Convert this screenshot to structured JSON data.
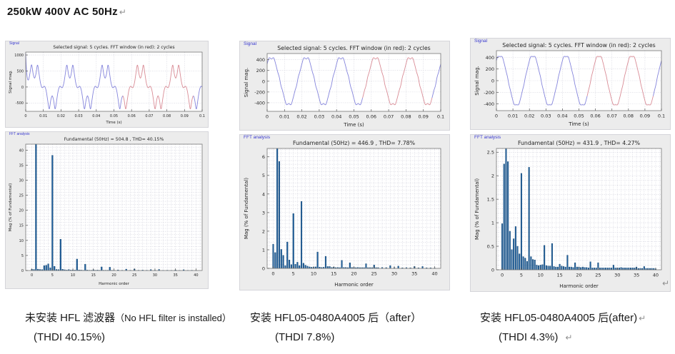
{
  "page": {
    "heading": "250kW 400V AC 50Hz",
    "pilcrow": "↵"
  },
  "figures": [
    {
      "signal_label": "Signal",
      "fft_label": "FFT analysis"
    },
    {
      "signal_label": "Signal",
      "fft_label": "FFT analysis"
    },
    {
      "signal_label": "Signal",
      "fft_label": "FFT analysis"
    }
  ],
  "captions": [
    {
      "line1_zh": "未安装 HFL 滤波器",
      "line1_en": "（No HFL filter is installed）",
      "line2": "(THDI 40.15%)"
    },
    {
      "line1_zh": "安装 HFL05-0480A4005 后",
      "line1_en": "（after）",
      "line2": "(THDI 7.8%)"
    },
    {
      "line1_zh": "安装 HFL05-0480A4005 后",
      "line1_en": "(after)",
      "line2": "(THDI 4.3%)"
    }
  ],
  "chart_data": [
    {
      "type": "line",
      "figure": 1,
      "panel": "Signal",
      "title": "Selected signal: 5 cycles. FFT window (in red): 2 cycles",
      "xlabel": "Time (s)",
      "ylabel": "Signal mag.",
      "xlim": [
        0,
        0.1
      ],
      "ylim": [
        -760,
        1090
      ],
      "xticks": [
        0,
        0.01,
        0.02,
        0.03,
        0.04,
        0.05,
        0.06,
        0.07,
        0.08,
        0.09,
        0.1
      ],
      "yticks": [
        -500,
        0,
        500,
        1000
      ],
      "frequency_hz": 50,
      "cycles": 5,
      "fundamental_peak": 504.8,
      "harmonics_pct": [
        [
          1,
          100
        ],
        [
          5,
          38.3
        ],
        [
          7,
          10.4
        ],
        [
          11,
          3.8
        ],
        [
          13,
          2.1
        ],
        [
          17,
          1.2
        ],
        [
          19,
          1.1
        ]
      ],
      "fft_window_s": [
        0.055,
        0.095
      ],
      "transient_peak": 1050,
      "line_color": "#8585dc",
      "window_color": "#d98c96"
    },
    {
      "type": "bar",
      "figure": 1,
      "panel": "FFT analysis",
      "title": "Fundamental (50Hz) = 504.8 , THD= 40.15%",
      "xlabel": "Harmonic order",
      "ylabel": "Mag (% of Fundamental)",
      "xlim": [
        -1.5,
        41.5
      ],
      "ylim": [
        0,
        42
      ],
      "xticks": [
        0,
        5,
        10,
        15,
        20,
        25,
        30,
        35,
        40
      ],
      "yticks": [
        0,
        5,
        10,
        15,
        20,
        25,
        30,
        35,
        40
      ],
      "bar_color": "#1f5f9e",
      "bar_edge": "#14456e",
      "bars": [
        [
          0,
          0.4
        ],
        [
          0.5,
          0.35
        ],
        [
          1,
          100
        ],
        [
          1.5,
          0.45
        ],
        [
          2,
          0.35
        ],
        [
          2.5,
          0.3
        ],
        [
          3,
          1.6
        ],
        [
          3.5,
          1.75
        ],
        [
          4,
          2.2
        ],
        [
          4.5,
          0.9
        ],
        [
          5,
          38.3
        ],
        [
          5.5,
          1.4
        ],
        [
          6,
          0.35
        ],
        [
          6.5,
          0.3
        ],
        [
          7,
          10.4
        ],
        [
          7.5,
          0.4
        ],
        [
          8,
          0.25
        ],
        [
          8.5,
          0.15
        ],
        [
          9,
          0.3
        ],
        [
          9.5,
          0.15
        ],
        [
          10,
          0.2
        ],
        [
          10.5,
          0.15
        ],
        [
          11,
          3.8
        ],
        [
          11.5,
          0.2
        ],
        [
          12,
          0.15
        ],
        [
          12.5,
          0.1
        ],
        [
          13,
          2.1
        ],
        [
          13.5,
          0.15
        ],
        [
          14,
          0.1
        ],
        [
          14.5,
          0.1
        ],
        [
          15,
          0.25
        ],
        [
          15.5,
          0.1
        ],
        [
          16,
          0.15
        ],
        [
          16.5,
          0.1
        ],
        [
          17,
          1.2
        ],
        [
          17.5,
          0.1
        ],
        [
          18,
          0.1
        ],
        [
          18.5,
          0.1
        ],
        [
          19,
          1.1
        ],
        [
          19.5,
          0.1
        ],
        [
          20,
          0.1
        ],
        [
          21,
          0.2
        ],
        [
          22,
          0.1
        ],
        [
          23,
          0.45
        ],
        [
          24,
          0.1
        ],
        [
          25,
          0.5
        ],
        [
          26,
          0.1
        ],
        [
          27,
          0.15
        ],
        [
          28,
          0.1
        ],
        [
          29,
          0.3
        ],
        [
          30,
          0.1
        ],
        [
          31,
          0.35
        ],
        [
          32,
          0.08
        ],
        [
          33,
          0.1
        ],
        [
          34,
          0.08
        ],
        [
          35,
          0.2
        ],
        [
          36,
          0.08
        ],
        [
          37,
          0.25
        ],
        [
          38,
          0.08
        ],
        [
          39,
          0.1
        ],
        [
          40,
          0.05
        ]
      ]
    },
    {
      "type": "line",
      "figure": 2,
      "panel": "Signal",
      "title": "Selected signal: 5 cycles. FFT window (in red): 2 cycles",
      "xlabel": "Time (s)",
      "ylabel": "Signal mag.",
      "xlim": [
        0,
        0.1
      ],
      "ylim": [
        -560,
        515
      ],
      "xticks": [
        0,
        0.01,
        0.02,
        0.03,
        0.04,
        0.05,
        0.06,
        0.07,
        0.08,
        0.09,
        0.1
      ],
      "yticks": [
        -400,
        -200,
        0,
        200,
        400
      ],
      "frequency_hz": 50,
      "cycles": 5,
      "fundamental_peak": 446.9,
      "harmonics_pct": [
        [
          1,
          100
        ],
        [
          5,
          2.95
        ],
        [
          7,
          3.6
        ],
        [
          11,
          0.88
        ],
        [
          13,
          0.65
        ]
      ],
      "fft_window_s": [
        0.055,
        0.095
      ],
      "line_color": "#8585dc",
      "window_color": "#d98c96"
    },
    {
      "type": "bar",
      "figure": 2,
      "panel": "FFT analysis",
      "title": "Fundamental (50Hz) = 446.9 , THD= 7.78%",
      "xlabel": "Harmonic order",
      "ylabel": "Mag (% of Fundamental)",
      "xlim": [
        -1.5,
        41.5
      ],
      "ylim": [
        0,
        6.45
      ],
      "xticks": [
        0,
        5,
        10,
        15,
        20,
        25,
        30,
        35,
        40
      ],
      "yticks": [
        0,
        1,
        2,
        3,
        4,
        5,
        6
      ],
      "bar_color": "#1f5f9e",
      "bar_edge": "#14456e",
      "bars": [
        [
          0,
          1.3
        ],
        [
          0.5,
          0.85
        ],
        [
          1,
          100
        ],
        [
          1.5,
          5.75
        ],
        [
          2,
          1.02
        ],
        [
          2.5,
          0.7
        ],
        [
          3,
          0.15
        ],
        [
          3.5,
          1.42
        ],
        [
          4,
          0.45
        ],
        [
          4.5,
          0.2
        ],
        [
          5,
          2.95
        ],
        [
          5.5,
          0.22
        ],
        [
          6,
          0.33
        ],
        [
          6.5,
          0.15
        ],
        [
          7,
          3.6
        ],
        [
          7.5,
          0.28
        ],
        [
          8,
          0.17
        ],
        [
          8.5,
          0.12
        ],
        [
          9,
          0.08
        ],
        [
          9.5,
          0.06
        ],
        [
          10,
          0.06
        ],
        [
          10.5,
          0.08
        ],
        [
          11,
          0.88
        ],
        [
          11.5,
          0.07
        ],
        [
          12,
          0.05
        ],
        [
          12.5,
          0.06
        ],
        [
          13,
          0.65
        ],
        [
          13.5,
          0.1
        ],
        [
          14,
          0.1
        ],
        [
          14.5,
          0.05
        ],
        [
          15,
          0.07
        ],
        [
          15.5,
          0.04
        ],
        [
          16,
          0.05
        ],
        [
          16.5,
          0.04
        ],
        [
          17,
          0.43
        ],
        [
          17.5,
          0.05
        ],
        [
          18,
          0.05
        ],
        [
          18.5,
          0.04
        ],
        [
          19,
          0.3
        ],
        [
          19.5,
          0.05
        ],
        [
          20,
          0.05
        ],
        [
          20.5,
          0.04
        ],
        [
          21,
          0.05
        ],
        [
          21.5,
          0.04
        ],
        [
          22,
          0.04
        ],
        [
          22.5,
          0.04
        ],
        [
          23,
          0.25
        ],
        [
          23.5,
          0.04
        ],
        [
          24,
          0.04
        ],
        [
          24.5,
          0.04
        ],
        [
          25,
          0.18
        ],
        [
          25.5,
          0.04
        ],
        [
          26,
          0.04
        ],
        [
          27,
          0.05
        ],
        [
          28,
          0.04
        ],
        [
          29,
          0.15
        ],
        [
          30,
          0.04
        ],
        [
          31,
          0.12
        ],
        [
          32,
          0.03
        ],
        [
          33,
          0.04
        ],
        [
          34,
          0.03
        ],
        [
          35,
          0.1
        ],
        [
          36,
          0.03
        ],
        [
          37,
          0.1
        ],
        [
          38,
          0.03
        ],
        [
          39,
          0.03
        ],
        [
          40,
          0.02
        ]
      ]
    },
    {
      "type": "line",
      "figure": 3,
      "panel": "Signal",
      "title": "Selected signal: 5 cycles. FFT window (in red): 2 cycles",
      "xlabel": "Time (s)",
      "ylabel": "Signal mag.",
      "xlim": [
        0,
        0.1
      ],
      "ylim": [
        -515,
        515
      ],
      "xticks": [
        0,
        0.01,
        0.02,
        0.03,
        0.04,
        0.05,
        0.06,
        0.07,
        0.08,
        0.09,
        0.1
      ],
      "yticks": [
        -400,
        -200,
        0,
        200,
        400
      ],
      "frequency_hz": 50,
      "cycles": 5,
      "fundamental_peak": 431.9,
      "harmonics_pct": [
        [
          1,
          100
        ],
        [
          5,
          2.05
        ],
        [
          7,
          2.18
        ],
        [
          11,
          0.52
        ],
        [
          13,
          0.56
        ]
      ],
      "fft_window_s": [
        0.055,
        0.095
      ],
      "line_color": "#8585dc",
      "window_color": "#d98c96"
    },
    {
      "type": "bar",
      "figure": 3,
      "panel": "FFT analysis",
      "title": "Fundamental (50Hz) = 431.9 , THD= 4.27%",
      "xlabel": "Harmonic order",
      "ylabel": "Mag (% of Fundamental)",
      "xlim": [
        -1.5,
        41.5
      ],
      "ylim": [
        0,
        2.58
      ],
      "xticks": [
        0,
        5,
        10,
        15,
        20,
        25,
        30,
        35,
        40
      ],
      "yticks": [
        0,
        0.5,
        1,
        1.5,
        2,
        2.5
      ],
      "bar_color": "#1f5f9e",
      "bar_edge": "#14456e",
      "bars": [
        [
          0,
          0.98
        ],
        [
          0.5,
          2.25
        ],
        [
          1,
          100
        ],
        [
          1.5,
          2.3
        ],
        [
          2,
          0.82
        ],
        [
          2.5,
          0.43
        ],
        [
          3,
          0.66
        ],
        [
          3.5,
          0.92
        ],
        [
          4,
          0.5
        ],
        [
          4.5,
          0.34
        ],
        [
          5,
          2.05
        ],
        [
          5.5,
          0.28
        ],
        [
          6,
          0.25
        ],
        [
          6.5,
          0.18
        ],
        [
          7,
          2.18
        ],
        [
          7.5,
          0.28
        ],
        [
          8,
          0.22
        ],
        [
          8.5,
          0.21
        ],
        [
          9,
          0.1
        ],
        [
          9.5,
          0.09
        ],
        [
          10,
          0.1
        ],
        [
          10.5,
          0.11
        ],
        [
          11,
          0.52
        ],
        [
          11.5,
          0.09
        ],
        [
          12,
          0.08
        ],
        [
          12.5,
          0.08
        ],
        [
          13,
          0.56
        ],
        [
          13.5,
          0.07
        ],
        [
          14,
          0.06
        ],
        [
          14.5,
          0.06
        ],
        [
          15,
          0.12
        ],
        [
          15.5,
          0.08
        ],
        [
          16,
          0.07
        ],
        [
          16.5,
          0.06
        ],
        [
          17,
          0.31
        ],
        [
          17.5,
          0.06
        ],
        [
          18,
          0.06
        ],
        [
          18.5,
          0.05
        ],
        [
          19,
          0.15
        ],
        [
          19.5,
          0.06
        ],
        [
          20,
          0.06
        ],
        [
          20.5,
          0.05
        ],
        [
          21,
          0.06
        ],
        [
          21.5,
          0.05
        ],
        [
          22,
          0.05
        ],
        [
          22.5,
          0.04
        ],
        [
          23,
          0.17
        ],
        [
          23.5,
          0.04
        ],
        [
          24,
          0.04
        ],
        [
          24.5,
          0.04
        ],
        [
          25,
          0.15
        ],
        [
          25.5,
          0.04
        ],
        [
          26,
          0.04
        ],
        [
          26.5,
          0.04
        ],
        [
          27,
          0.04
        ],
        [
          27.5,
          0.04
        ],
        [
          28,
          0.04
        ],
        [
          28.5,
          0.04
        ],
        [
          29,
          0.1
        ],
        [
          29.5,
          0.04
        ],
        [
          30,
          0.04
        ],
        [
          30.5,
          0.04
        ],
        [
          31,
          0.05
        ],
        [
          31.5,
          0.04
        ],
        [
          32,
          0.04
        ],
        [
          32.5,
          0.04
        ],
        [
          33,
          0.04
        ],
        [
          33.5,
          0.04
        ],
        [
          34,
          0.04
        ],
        [
          34.5,
          0.04
        ],
        [
          35,
          0.06
        ],
        [
          35.5,
          0.03
        ],
        [
          36,
          0.03
        ],
        [
          36.5,
          0.03
        ],
        [
          37,
          0.07
        ],
        [
          37.5,
          0.03
        ],
        [
          38,
          0.03
        ],
        [
          38.5,
          0.03
        ],
        [
          39,
          0.03
        ],
        [
          39.5,
          0.03
        ],
        [
          40,
          0.02
        ]
      ]
    }
  ]
}
